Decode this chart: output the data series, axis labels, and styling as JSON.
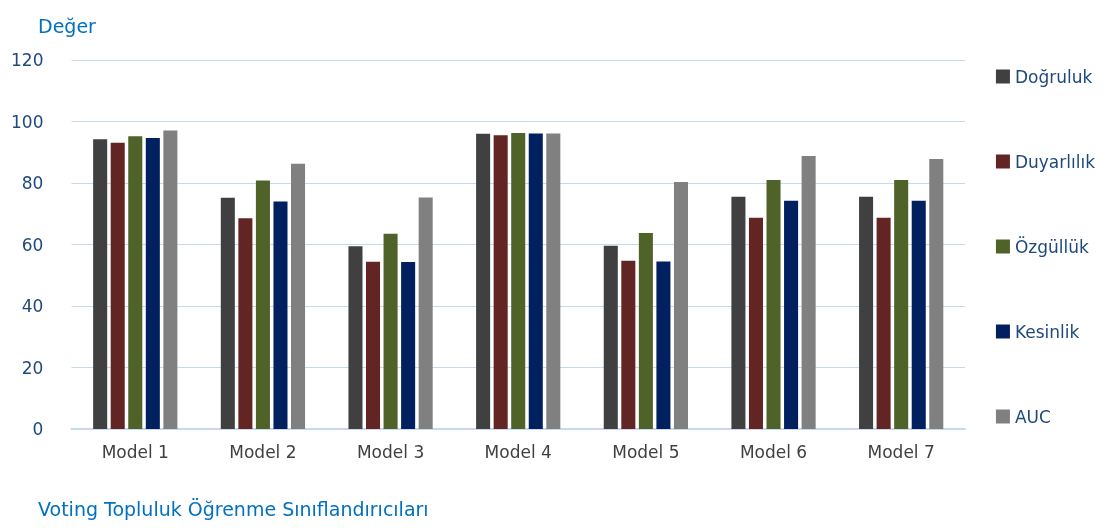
{
  "chart_data": {
    "type": "bar",
    "ylabel": "Değer",
    "xlabel": "Voting Topluluk Öğrenme Sınıflandırıcıları",
    "categories": [
      "Model 1",
      "Model 2",
      "Model 3",
      "Model 4",
      "Model 5",
      "Model 6",
      "Model 7"
    ],
    "series": [
      {
        "name": "Doğruluk",
        "color": "#404040",
        "values": [
          94.2,
          75.2,
          59.4,
          96.0,
          59.6,
          75.5,
          75.5
        ]
      },
      {
        "name": "Duyarlılık",
        "color": "#632523",
        "values": [
          93.1,
          68.5,
          54.4,
          95.5,
          54.7,
          68.7,
          68.7
        ]
      },
      {
        "name": "Özgüllük",
        "color": "#4f6228",
        "values": [
          95.2,
          80.8,
          63.5,
          96.3,
          63.7,
          81.0,
          81.0
        ]
      },
      {
        "name": "Kesinlik",
        "color": "#002060",
        "values": [
          94.6,
          74.0,
          54.3,
          96.1,
          54.5,
          74.2,
          74.2
        ]
      },
      {
        "name": "AUC",
        "color": "#808080",
        "values": [
          97.1,
          86.3,
          75.3,
          96.1,
          80.3,
          88.8,
          87.8
        ]
      }
    ],
    "ylim": [
      0,
      120
    ],
    "yticks": [
      0,
      20,
      40,
      60,
      80,
      100,
      120
    ],
    "grid": "y",
    "legend": "right"
  }
}
